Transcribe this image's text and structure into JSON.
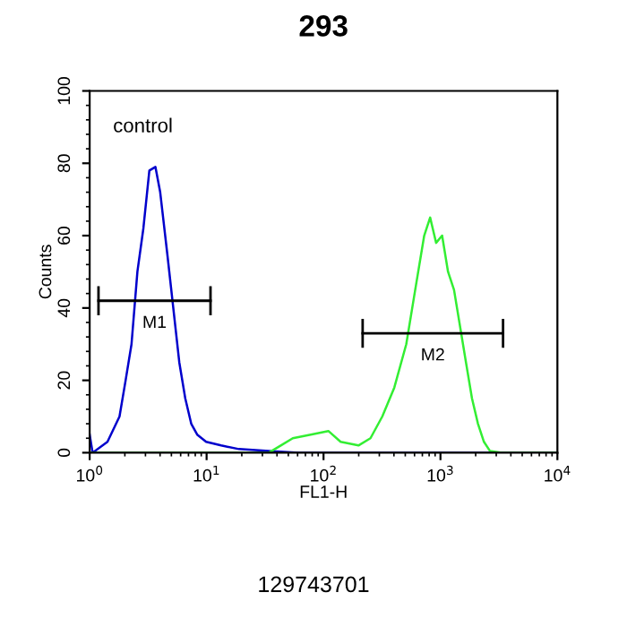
{
  "chart_data": {
    "type": "line",
    "title": "293",
    "xlabel": "FL1-H",
    "ylabel": "Counts",
    "log": "x",
    "xlim": [
      1,
      10000
    ],
    "ylim": [
      0,
      100
    ],
    "xticks": [
      {
        "value": 1,
        "label": "10$^{0}$"
      },
      {
        "value": 10,
        "label": "10$^{1}$"
      },
      {
        "value": 100,
        "label": "10$^{2}$"
      },
      {
        "value": 1000,
        "label": "10$^{3}$"
      },
      {
        "value": 10000,
        "label": "10$^{4}$"
      }
    ],
    "yticks": [
      0,
      20,
      40,
      60,
      80,
      100
    ],
    "grid": false,
    "legend": false,
    "marker": "none",
    "line_style": "solid",
    "series": [
      {
        "color": "#0000cc",
        "x": [
          1,
          1.06,
          1.42,
          1.8,
          2.03,
          2.28,
          2.56,
          2.88,
          3.24,
          3.65,
          4.01,
          4.61,
          5.19,
          5.84,
          6.57,
          7.39,
          8.31,
          9.91,
          13.3,
          18.9,
          34.1,
          61.4,
          645,
          10000
        ],
        "values": [
          5,
          0,
          3,
          10,
          20,
          30,
          50,
          62,
          78,
          79,
          72,
          55,
          40,
          25,
          15,
          8,
          5,
          3,
          2,
          1,
          0.5,
          0,
          0,
          0
        ]
      },
      {
        "color": "#33ee33",
        "x": [
          1,
          34.1,
          43.1,
          54.6,
          77.7,
          110,
          140,
          199,
          252,
          318,
          403,
          510,
          608,
          726,
          816,
          918,
          1033,
          1161,
          1306,
          1469,
          1652,
          1860,
          2093,
          2354,
          2647,
          3350,
          10000
        ],
        "values": [
          0,
          0,
          2,
          4,
          5,
          6,
          3,
          2,
          4,
          10,
          18,
          30,
          45,
          60,
          65,
          58,
          60,
          50,
          45,
          35,
          25,
          15,
          8,
          3,
          0.5,
          0,
          0
        ]
      },
      {
        "name": "M1",
        "color": "#000000",
        "x": [
          1.19,
          10.8
        ],
        "values": [
          42,
          42
        ],
        "errors": [
          4,
          4
        ]
      },
      {
        "name": "M2",
        "color": "#000000",
        "x": [
          216,
          3430
        ],
        "values": [
          33,
          33
        ],
        "errors": [
          4,
          4
        ]
      }
    ],
    "annotations": [
      "control",
      "129743701"
    ]
  }
}
